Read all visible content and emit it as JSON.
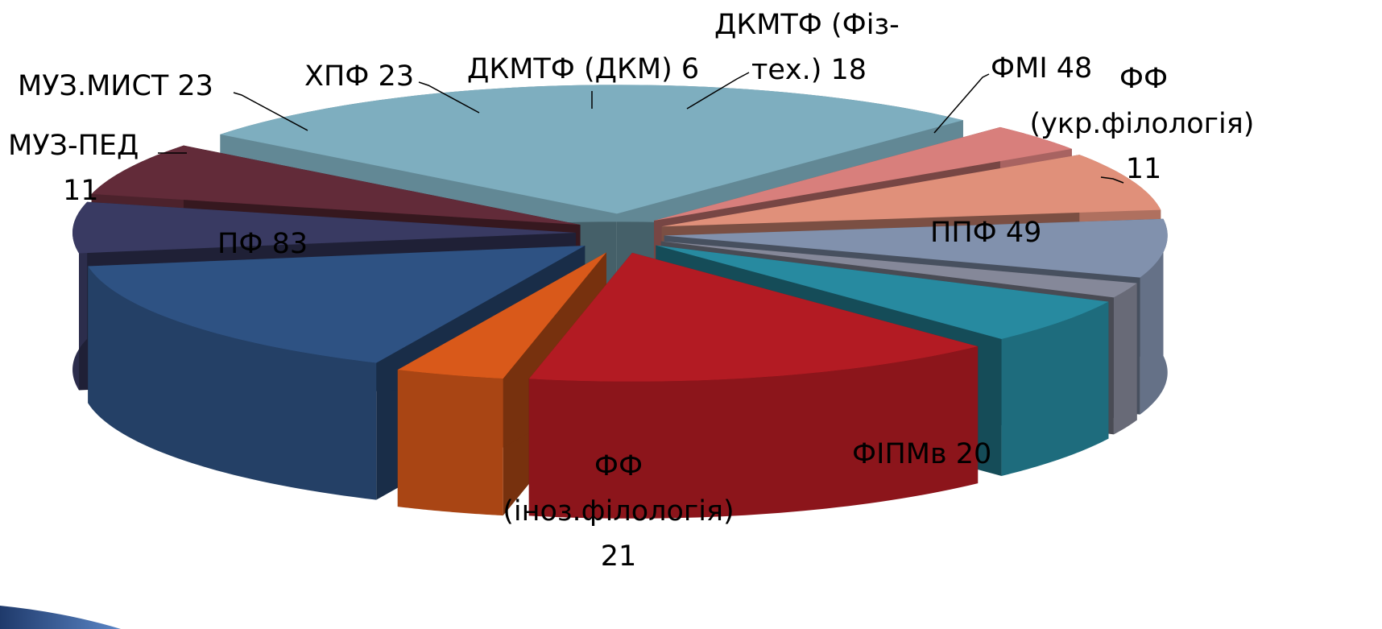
{
  "chart_data": {
    "type": "pie",
    "style": "3d-exploded",
    "title": "",
    "slices": [
      {
        "label": "ПФ",
        "value": 83,
        "label_lines": [
          "ПФ 83"
        ],
        "color": "#7EAEBF"
      },
      {
        "label": "МУЗ-ПЕД",
        "value": 11,
        "label_lines": [
          "МУЗ-ПЕД",
          "11"
        ],
        "color": "#D87F7C"
      },
      {
        "label": "МУЗ.МИСТ",
        "value": 23,
        "label_lines": [
          "МУЗ.МИСТ 23"
        ],
        "color": "#E0907A"
      },
      {
        "label": "ХПФ",
        "value": 23,
        "label_lines": [
          "ХПФ 23"
        ],
        "color": "#8191AD"
      },
      {
        "label": "ДКМТФ (ДКМ)",
        "value": 6,
        "label_lines": [
          "ДКМТФ (ДКМ) 6"
        ],
        "color": "#858899"
      },
      {
        "label": "ДКМТФ (Фіз-тех.)",
        "value": 18,
        "label_lines": [
          "ДКМТФ (Фіз-",
          "тех.) 18"
        ],
        "color": "#278AA0"
      },
      {
        "label": "ФМІ",
        "value": 48,
        "label_lines": [
          "ФМІ 48"
        ],
        "color": "#B31B23"
      },
      {
        "label": "ФФ (укр.філологія)",
        "value": 11,
        "label_lines": [
          "ФФ",
          "(укр.філологія)",
          "11"
        ],
        "color": "#D9591A"
      },
      {
        "label": "ППФ",
        "value": 49,
        "label_lines": [
          "ППФ 49"
        ],
        "color": "#2E5283"
      },
      {
        "label": "ФІПМв",
        "value": 20,
        "label_lines": [
          "ФІПМв 20"
        ],
        "color": "#393A62"
      },
      {
        "label": "ФФ (іноз.філологія)",
        "value": 21,
        "label_lines": [
          "ФФ",
          "(іноз.філологія)",
          "21"
        ],
        "color": "#622B39"
      }
    ]
  }
}
